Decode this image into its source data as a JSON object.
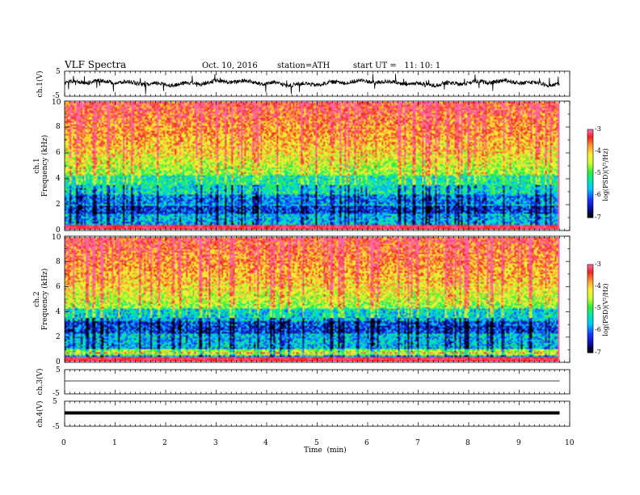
{
  "header": {
    "title": "VLF Spectra",
    "date": "Oct. 10, 2016",
    "station": "station=ATH",
    "start": "start UT =   11: 10: 1"
  },
  "chart_data": [
    {
      "type": "line",
      "panel": "ch1-waveform",
      "ylabel": "ch.1(V)",
      "ylim": [
        -5,
        5
      ],
      "yticks": [
        "5",
        "-5"
      ],
      "description_level": 0.3
    },
    {
      "type": "heatmap",
      "panel": "ch1-spectrogram",
      "ylabel": "ch.1\nFrequency (kHz)",
      "ylabel_lines": [
        "ch.1",
        "Frequency (kHz)"
      ],
      "ylim": [
        0,
        10
      ],
      "yticks": [
        "0",
        "2",
        "4",
        "6",
        "8",
        "10"
      ],
      "colorbar": {
        "label": "log(PSD)(V²/Hz)",
        "range": [
          -7,
          -3
        ],
        "ticks": [
          "-3",
          "-4",
          "-5",
          "-6",
          "-7"
        ]
      }
    },
    {
      "type": "heatmap",
      "panel": "ch2-spectrogram",
      "ylabel": "ch.2\nFrequency (kHz)",
      "ylabel_lines": [
        "ch.2",
        "Frequency (kHz)"
      ],
      "ylim": [
        0,
        10
      ],
      "yticks": [
        "0",
        "2",
        "4",
        "6",
        "8",
        "10"
      ],
      "colorbar": {
        "label": "log(PSD)(V²/Hz)",
        "range": [
          -7,
          -3
        ],
        "ticks": [
          "-3",
          "-4",
          "-5",
          "-6",
          "-7"
        ]
      }
    },
    {
      "type": "line",
      "panel": "ch3-waveform",
      "ylabel": "ch.3(V)",
      "ylim": [
        -5,
        5
      ],
      "yticks": [
        "5",
        "-5"
      ],
      "level": 0.0
    },
    {
      "type": "line",
      "panel": "ch4-waveform",
      "ylabel": "ch.4(V)",
      "ylim": [
        -5,
        5
      ],
      "yticks": [
        "5",
        "-5"
      ],
      "level": 0.0
    }
  ],
  "xaxis": {
    "label": "Time  (min)",
    "range": [
      0,
      10
    ],
    "ticks": [
      "0",
      "1",
      "2",
      "3",
      "4",
      "5",
      "6",
      "7",
      "8",
      "9",
      "10"
    ],
    "data_end": 9.8
  },
  "colors": {
    "palette": [
      "#000000",
      "#0a0a8c",
      "#1a33ff",
      "#00c8ff",
      "#00e8b0",
      "#33ee33",
      "#ccff33",
      "#ffee33",
      "#ff9933",
      "#ee2222",
      "#ff66aa",
      "#ffffff"
    ]
  }
}
